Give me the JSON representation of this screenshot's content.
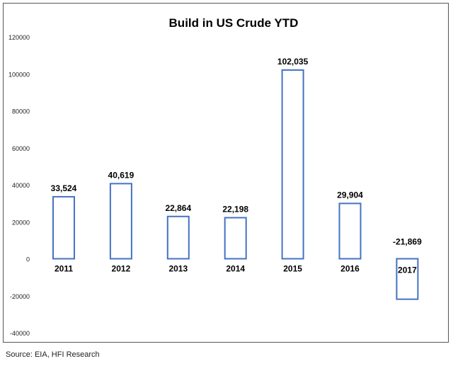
{
  "chart_data": {
    "type": "bar",
    "title": "Build in US Crude YTD",
    "categories": [
      "2011",
      "2012",
      "2013",
      "2014",
      "2015",
      "2016",
      "2017"
    ],
    "values": [
      33524,
      40619,
      22864,
      22198,
      102035,
      29904,
      -21869
    ],
    "value_labels": [
      "33,524",
      "40,619",
      "22,864",
      "22,198",
      "102,035",
      "29,904",
      "-21,869"
    ],
    "ylim": [
      -40000,
      120000
    ],
    "yticks": [
      -40000,
      -20000,
      0,
      20000,
      40000,
      60000,
      80000,
      100000,
      120000
    ],
    "ytick_labels": [
      "-40000",
      "-20000",
      "0",
      "20000",
      "40000",
      "60000",
      "80000",
      "100000",
      "120000"
    ],
    "xlabel": "",
    "ylabel": "",
    "grid": false,
    "legend": "none",
    "bar_style": "outline",
    "bar_color": "#4472c4"
  },
  "footer": {
    "source": "Source: EIA, HFI Research"
  }
}
